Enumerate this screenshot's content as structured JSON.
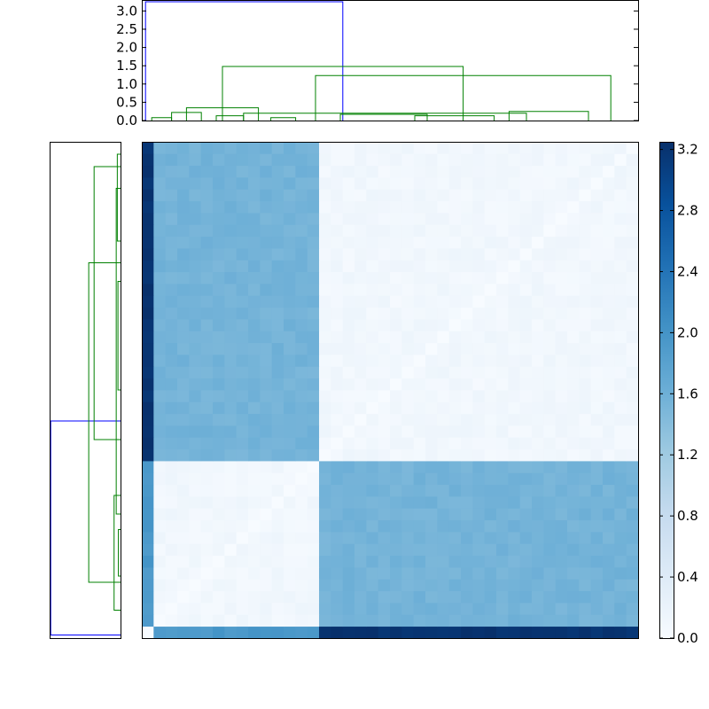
{
  "colors": {
    "linkage_above_threshold": "#0000ff",
    "cluster": "#008000",
    "axes": "#000000",
    "cmap_low": "#f7fbff",
    "cmap_high": "#08306b"
  },
  "chart_data": [
    {
      "type": "line",
      "panel": "top-dendrogram",
      "ylim": [
        0.0,
        3.3
      ],
      "yticks": [
        0.0,
        0.5,
        1.0,
        1.5,
        2.0,
        2.5,
        3.0
      ],
      "ytick_labels": [
        "0.0",
        "0.5",
        "1.0",
        "1.5",
        "2.0",
        "2.5",
        "3.0"
      ],
      "grid": false,
      "links": [
        {
          "left": 0.15,
          "right": 8.1,
          "height": 3.25,
          "color": "blue"
        },
        {
          "left": 3.25,
          "right": 12.95,
          "height": 1.48,
          "color": "green"
        },
        {
          "left": 1.8,
          "right": 4.7,
          "height": 0.35,
          "color": "green"
        },
        {
          "left": 7.0,
          "right": 18.9,
          "height": 1.23,
          "color": "green"
        },
        {
          "left": 4.1,
          "right": 15.5,
          "height": 0.2,
          "color": "green"
        },
        {
          "left": 14.8,
          "right": 18.0,
          "height": 0.25,
          "color": "green"
        },
        {
          "left": 1.2,
          "right": 2.4,
          "height": 0.22,
          "color": "green"
        },
        {
          "left": 3.0,
          "right": 4.1,
          "height": 0.13,
          "color": "green"
        },
        {
          "left": 0.4,
          "right": 1.2,
          "height": 0.08,
          "color": "green"
        },
        {
          "left": 5.2,
          "right": 6.2,
          "height": 0.08,
          "color": "green"
        },
        {
          "left": 8.0,
          "right": 11.5,
          "height": 0.17,
          "color": "green"
        },
        {
          "left": 11.0,
          "right": 14.2,
          "height": 0.13,
          "color": "green"
        }
      ]
    },
    {
      "type": "line",
      "panel": "left-dendrogram",
      "grid": false,
      "links": [
        {
          "left": 0.1,
          "right": 7.0,
          "height": 3.25,
          "color": "blue"
        },
        {
          "left": 1.8,
          "right": 12.1,
          "height": 1.48,
          "color": "green"
        },
        {
          "left": 0.9,
          "right": 4.6,
          "height": 0.3,
          "color": "green"
        },
        {
          "left": 6.4,
          "right": 15.2,
          "height": 1.23,
          "color": "green"
        },
        {
          "left": 4.0,
          "right": 14.5,
          "height": 0.2,
          "color": "green"
        },
        {
          "left": 12.8,
          "right": 15.6,
          "height": 0.15,
          "color": "green"
        },
        {
          "left": 2.0,
          "right": 3.5,
          "height": 0.1,
          "color": "green"
        },
        {
          "left": 8.0,
          "right": 11.5,
          "height": 0.12,
          "color": "green"
        }
      ]
    },
    {
      "type": "heatmap",
      "panel": "distance-matrix",
      "groups": [
        {
          "id": "outlier",
          "size": 1
        },
        {
          "id": "A",
          "size": 14
        },
        {
          "id": "B",
          "size": 27
        }
      ],
      "mean_distance": {
        "within_A": 0.1,
        "within_B": 0.1,
        "A_to_B": 1.55,
        "outlier_to_A": 1.95,
        "outlier_to_B": 3.2
      },
      "colorbar": {
        "range": [
          0.0,
          3.25
        ],
        "ticks": [
          0.0,
          0.4,
          0.8,
          1.2,
          1.6,
          2.0,
          2.4,
          2.8,
          3.2
        ],
        "tick_labels": [
          "0.0",
          "0.4",
          "0.8",
          "1.2",
          "1.6",
          "2.0",
          "2.4",
          "2.8",
          "3.2"
        ]
      }
    }
  ]
}
